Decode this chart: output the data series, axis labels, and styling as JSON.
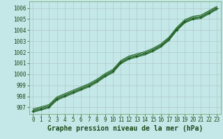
{
  "title": "Graphe pression niveau de la mer (hPa)",
  "background_color": "#c4e8e8",
  "plot_bg_color": "#c4e8e8",
  "grid_color": "#b0c8c8",
  "line_color": "#1a5c1a",
  "marker_color": "#1a5c1a",
  "xlim": [
    -0.5,
    23.5
  ],
  "ylim": [
    996.4,
    1006.6
  ],
  "xticks": [
    0,
    1,
    2,
    3,
    4,
    5,
    6,
    7,
    8,
    9,
    10,
    11,
    12,
    13,
    14,
    15,
    16,
    17,
    18,
    19,
    20,
    21,
    22,
    23
  ],
  "yticks": [
    997,
    998,
    999,
    1000,
    1001,
    1002,
    1003,
    1004,
    1005,
    1006
  ],
  "x": [
    0,
    1,
    2,
    3,
    4,
    5,
    6,
    7,
    8,
    9,
    10,
    11,
    12,
    13,
    14,
    15,
    16,
    17,
    18,
    19,
    20,
    21,
    22,
    23
  ],
  "series_main": [
    996.65,
    996.85,
    997.05,
    997.75,
    998.05,
    998.35,
    998.65,
    998.95,
    999.35,
    999.85,
    1000.25,
    1001.05,
    1001.45,
    1001.65,
    1001.85,
    1002.15,
    1002.55,
    1003.15,
    1004.05,
    1004.75,
    1005.05,
    1005.15,
    1005.55,
    1005.95
  ],
  "series_high1": [
    996.75,
    996.95,
    997.15,
    997.85,
    998.15,
    998.45,
    998.75,
    999.05,
    999.45,
    999.95,
    1000.35,
    1001.15,
    1001.55,
    1001.75,
    1001.95,
    1002.25,
    1002.65,
    1003.25,
    1004.15,
    1004.85,
    1005.15,
    1005.25,
    1005.65,
    1006.05
  ],
  "series_high2": [
    996.85,
    997.05,
    997.25,
    997.95,
    998.25,
    998.55,
    998.85,
    999.15,
    999.55,
    1000.05,
    1000.45,
    1001.25,
    1001.65,
    1001.85,
    1002.05,
    1002.35,
    1002.75,
    1003.35,
    1004.25,
    1004.95,
    1005.25,
    1005.35,
    1005.75,
    1006.15
  ],
  "series_low1": [
    996.55,
    996.75,
    996.95,
    997.65,
    997.95,
    998.25,
    998.55,
    998.85,
    999.25,
    999.75,
    1000.15,
    1000.95,
    1001.35,
    1001.55,
    1001.75,
    1002.05,
    1002.45,
    1003.05,
    1003.95,
    1004.65,
    1004.95,
    1005.05,
    1005.45,
    1005.85
  ],
  "tick_fontsize": 5.5,
  "xlabel_fontsize": 7.0
}
